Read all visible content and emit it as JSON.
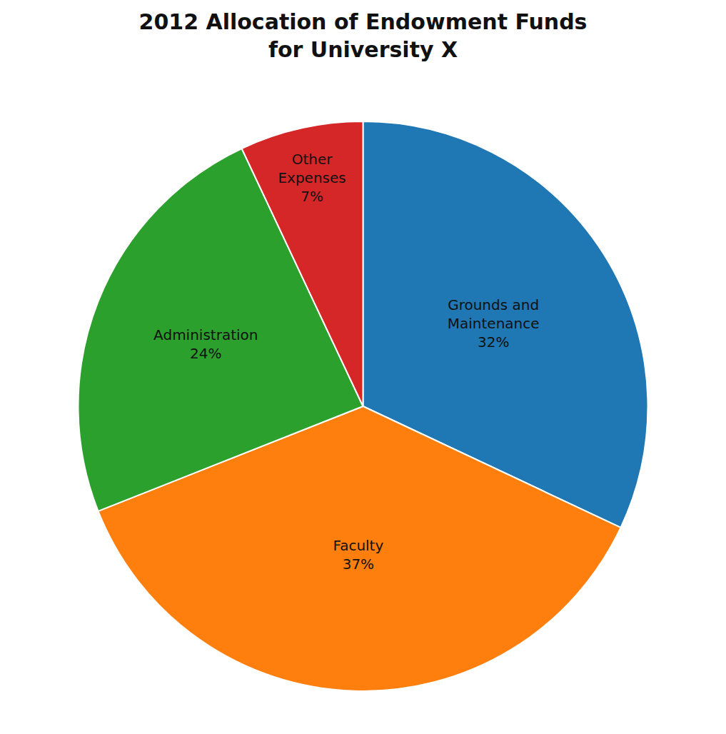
{
  "chart_data": {
    "type": "pie",
    "title": "2012 Allocation of Endowment Funds\nfor University X",
    "categories": [
      "Grounds and\nMaintenance",
      "Faculty",
      "Administration",
      "Other\nExpenses"
    ],
    "values": [
      32,
      37,
      24,
      7
    ],
    "value_labels": [
      "32%",
      "37%",
      "24%",
      "7%"
    ],
    "data_labels": true
  }
}
